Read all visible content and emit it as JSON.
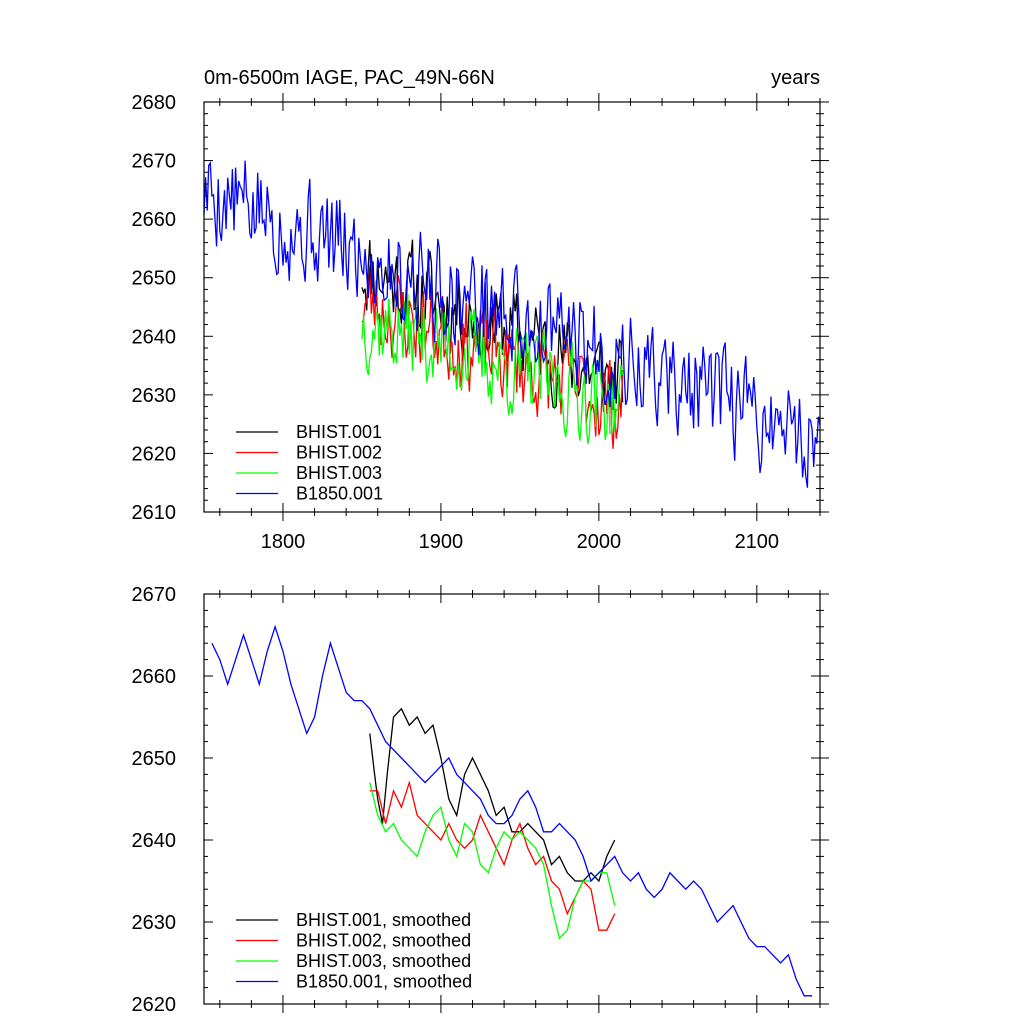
{
  "chart_data": [
    {
      "type": "line",
      "title": "0m-6500m IAGE, PAC_49N-66N",
      "title_right": "years",
      "xlabel": "",
      "ylabel": "",
      "xlim": [
        1750,
        2140
      ],
      "ylim": [
        2610,
        2680
      ],
      "x_ticks": [
        1800,
        1900,
        2000,
        2100
      ],
      "x_tick_labels": [
        "1800",
        "1900",
        "2000",
        "2100"
      ],
      "y_ticks": [
        2610,
        2620,
        2630,
        2640,
        2650,
        2660,
        2670,
        2680
      ],
      "y_tick_labels": [
        "2610",
        "2620",
        "2630",
        "2640",
        "2650",
        "2660",
        "2670",
        "2680"
      ],
      "legend_position": "bottom-left",
      "series": [
        {
          "name": "BHIST.001",
          "color": "#000000",
          "x_start": 1850,
          "x_end": 2015,
          "start": 2652,
          "end": 2632,
          "seed": 11,
          "noise": 7
        },
        {
          "name": "BHIST.002",
          "color": "#ff0000",
          "x_start": 1850,
          "x_end": 2015,
          "start": 2646,
          "end": 2628,
          "seed": 23,
          "noise": 7
        },
        {
          "name": "BHIST.003",
          "color": "#00ff00",
          "x_start": 1850,
          "x_end": 2015,
          "start": 2643,
          "end": 2628,
          "seed": 37,
          "noise": 7
        },
        {
          "name": "B1850.001",
          "color": "#0000ff",
          "x_start": 1750,
          "x_end": 2140,
          "start": 2665,
          "end": 2622,
          "seed": 5,
          "noise": 8
        }
      ]
    },
    {
      "type": "line",
      "title": "",
      "xlabel": "",
      "ylabel": "",
      "xlim": [
        1750,
        2140
      ],
      "ylim": [
        2620,
        2670
      ],
      "x_ticks": [
        1800,
        1900,
        2000,
        2100
      ],
      "x_tick_labels": [],
      "y_ticks": [
        2620,
        2630,
        2640,
        2650,
        2660,
        2670
      ],
      "y_tick_labels": [
        "2620",
        "2630",
        "2640",
        "2650",
        "2660",
        "2670"
      ],
      "legend_position": "bottom-left",
      "series": [
        {
          "name": "BHIST.001, smoothed",
          "color": "#000000",
          "x": [
            1855,
            1858,
            1860,
            1863,
            1866,
            1870,
            1875,
            1880,
            1885,
            1890,
            1895,
            1900,
            1905,
            1910,
            1915,
            1920,
            1925,
            1930,
            1935,
            1940,
            1945,
            1950,
            1955,
            1960,
            1965,
            1970,
            1975,
            1980,
            1985,
            1990,
            1995,
            2000,
            2005,
            2010
          ],
          "y": [
            2653,
            2648,
            2645,
            2642,
            2648,
            2655,
            2656,
            2654,
            2655,
            2653,
            2654,
            2650,
            2645,
            2643,
            2648,
            2650,
            2648,
            2646,
            2643,
            2644,
            2641,
            2641,
            2642,
            2641,
            2640,
            2637,
            2638,
            2636,
            2635,
            2635,
            2636,
            2635,
            2638,
            2640
          ]
        },
        {
          "name": "BHIST.002, smoothed",
          "color": "#ff0000",
          "x": [
            1855,
            1860,
            1865,
            1870,
            1875,
            1880,
            1885,
            1890,
            1895,
            1900,
            1905,
            1910,
            1915,
            1920,
            1925,
            1930,
            1935,
            1940,
            1945,
            1950,
            1955,
            1960,
            1965,
            1970,
            1975,
            1980,
            1985,
            1990,
            1995,
            2000,
            2005,
            2010
          ],
          "y": [
            2646,
            2646,
            2642,
            2646,
            2644,
            2647,
            2643,
            2642,
            2641,
            2640,
            2642,
            2640,
            2639,
            2640,
            2643,
            2641,
            2639,
            2637,
            2640,
            2642,
            2639,
            2637,
            2638,
            2635,
            2634,
            2631,
            2633,
            2635,
            2634,
            2629,
            2629,
            2631
          ]
        },
        {
          "name": "BHIST.003, smoothed",
          "color": "#00ff00",
          "x": [
            1855,
            1860,
            1865,
            1870,
            1875,
            1880,
            1885,
            1890,
            1895,
            1900,
            1905,
            1910,
            1915,
            1920,
            1925,
            1930,
            1935,
            1940,
            1945,
            1950,
            1955,
            1960,
            1965,
            1970,
            1975,
            1980,
            1985,
            1990,
            1995,
            2000,
            2005,
            2010
          ],
          "y": [
            2647,
            2643,
            2641,
            2642,
            2640,
            2639,
            2638,
            2641,
            2643,
            2644,
            2640,
            2638,
            2642,
            2641,
            2637,
            2636,
            2639,
            2641,
            2640,
            2641,
            2640,
            2639,
            2637,
            2632,
            2628,
            2629,
            2633,
            2635,
            2635,
            2636,
            2636,
            2632
          ]
        },
        {
          "name": "B1850.001, smoothed",
          "color": "#0000ff",
          "x": [
            1755,
            1760,
            1765,
            1770,
            1775,
            1780,
            1785,
            1790,
            1795,
            1800,
            1805,
            1810,
            1815,
            1820,
            1825,
            1830,
            1835,
            1840,
            1845,
            1850,
            1855,
            1860,
            1865,
            1870,
            1875,
            1880,
            1885,
            1890,
            1895,
            1900,
            1905,
            1910,
            1915,
            1920,
            1925,
            1930,
            1935,
            1940,
            1945,
            1950,
            1955,
            1960,
            1965,
            1970,
            1975,
            1980,
            1985,
            1990,
            1995,
            2000,
            2005,
            2010,
            2015,
            2020,
            2025,
            2030,
            2035,
            2040,
            2045,
            2050,
            2055,
            2060,
            2065,
            2070,
            2075,
            2080,
            2085,
            2090,
            2095,
            2100,
            2105,
            2110,
            2115,
            2120,
            2125,
            2130,
            2135
          ],
          "y": [
            2664,
            2662,
            2659,
            2662,
            2665,
            2662,
            2659,
            2663,
            2666,
            2663,
            2659,
            2656,
            2653,
            2655,
            2660,
            2664,
            2661,
            2658,
            2657,
            2657,
            2656,
            2654,
            2652,
            2651,
            2650,
            2649,
            2648,
            2647,
            2648,
            2649,
            2650,
            2648,
            2647,
            2646,
            2645,
            2643,
            2642,
            2642,
            2643,
            2645,
            2646,
            2644,
            2641,
            2641,
            2642,
            2641,
            2640,
            2638,
            2635,
            2636,
            2637,
            2638,
            2636,
            2635,
            2636,
            2634,
            2633,
            2634,
            2636,
            2635,
            2634,
            2635,
            2634,
            2632,
            2630,
            2631,
            2632,
            2630,
            2628,
            2627,
            2627,
            2626,
            2625,
            2626,
            2623,
            2621,
            2621
          ]
        }
      ]
    }
  ]
}
